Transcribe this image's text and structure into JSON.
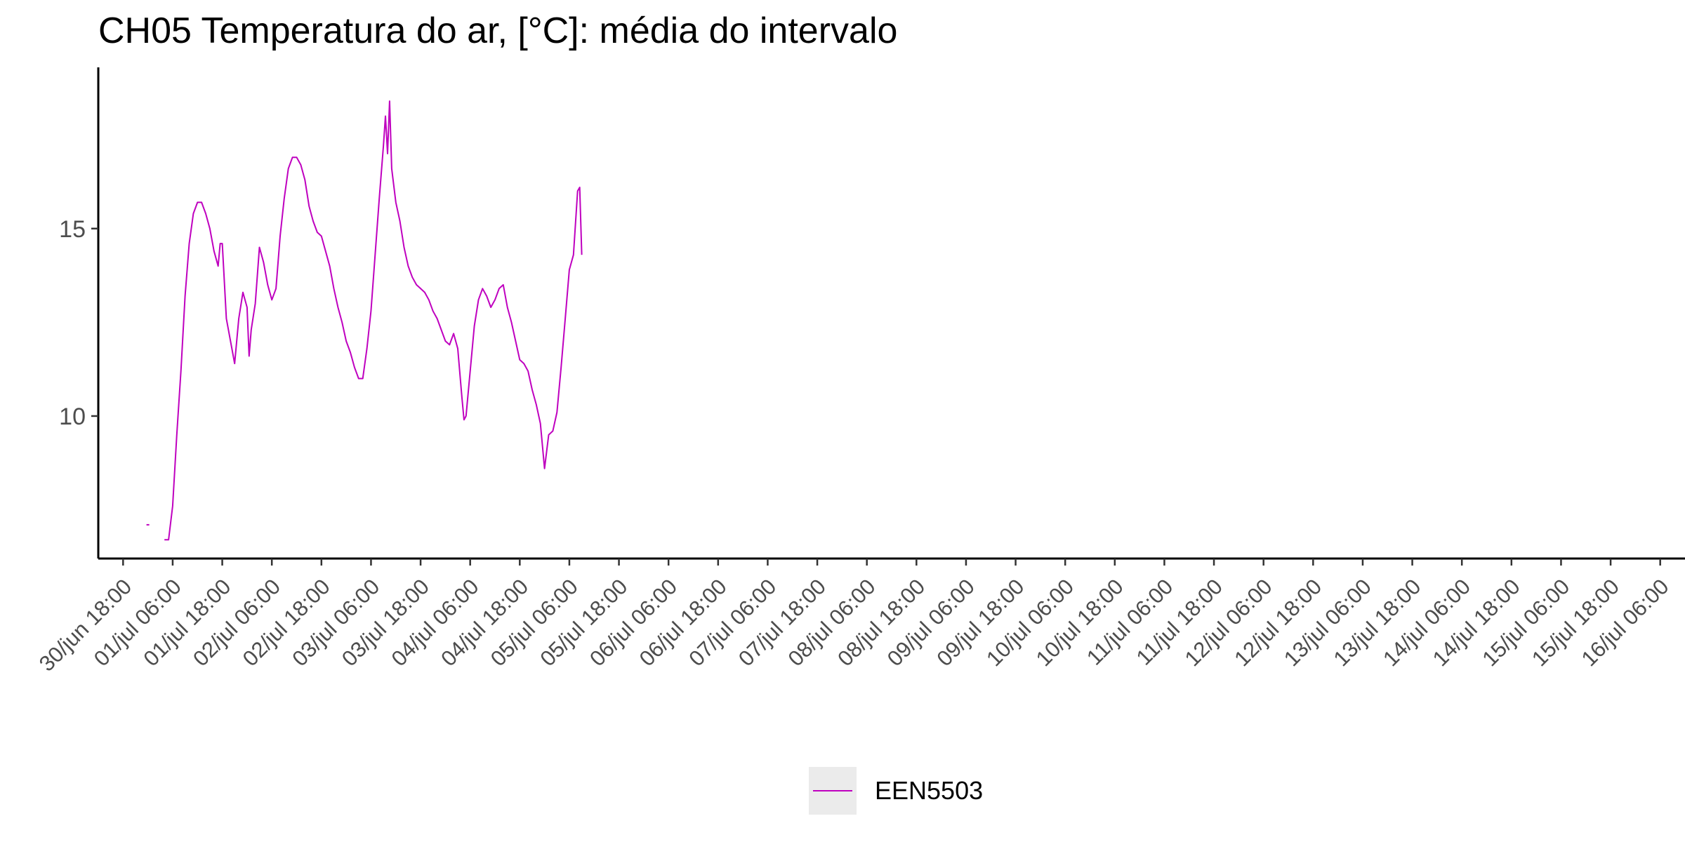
{
  "chart_data": {
    "type": "line",
    "title": "CH05 Temperatura do ar, [°C]: média do intervalo",
    "xlabel": "",
    "ylabel": "",
    "x_tick_labels": [
      "30/jun 18:00",
      "01/jul 06:00",
      "01/jul 18:00",
      "02/jul 06:00",
      "02/jul 18:00",
      "03/jul 06:00",
      "03/jul 18:00",
      "04/jul 06:00",
      "04/jul 18:00",
      "05/jul 06:00",
      "05/jul 18:00",
      "06/jul 06:00",
      "06/jul 18:00",
      "07/jul 06:00",
      "07/jul 18:00",
      "08/jul 06:00",
      "08/jul 18:00",
      "09/jul 06:00",
      "09/jul 18:00",
      "10/jul 06:00",
      "10/jul 18:00",
      "11/jul 06:00",
      "11/jul 18:00",
      "12/jul 06:00",
      "12/jul 18:00",
      "13/jul 06:00",
      "13/jul 18:00",
      "14/jul 06:00",
      "14/jul 18:00",
      "15/jul 06:00",
      "15/jul 18:00",
      "16/jul 06:00"
    ],
    "x_range": [
      "30/jun 12:00",
      "16/jul 12:00"
    ],
    "y_ticks": [
      10,
      15
    ],
    "ylim": [
      6.2,
      19.3
    ],
    "grid": false,
    "legend_position": "bottom",
    "series": [
      {
        "name": "EEN5503",
        "color": "#bf00bf",
        "points": [
          [
            "01/jul 00:00",
            7.1
          ],
          [
            "01/jul 04:00",
            6.7
          ],
          [
            "01/jul 05:00",
            6.7
          ],
          [
            "01/jul 06:00",
            7.6
          ],
          [
            "01/jul 07:00",
            9.5
          ],
          [
            "01/jul 08:00",
            11.2
          ],
          [
            "01/jul 09:00",
            13.2
          ],
          [
            "01/jul 10:00",
            14.6
          ],
          [
            "01/jul 11:00",
            15.4
          ],
          [
            "01/jul 12:00",
            15.7
          ],
          [
            "01/jul 13:00",
            15.7
          ],
          [
            "01/jul 14:00",
            15.4
          ],
          [
            "01/jul 15:00",
            15.0
          ],
          [
            "01/jul 16:00",
            14.4
          ],
          [
            "01/jul 17:00",
            14.0
          ],
          [
            "01/jul 17:30",
            14.6
          ],
          [
            "01/jul 18:00",
            14.6
          ],
          [
            "01/jul 19:00",
            12.6
          ],
          [
            "01/jul 20:00",
            12.0
          ],
          [
            "01/jul 21:00",
            11.4
          ],
          [
            "01/jul 22:00",
            12.6
          ],
          [
            "01/jul 23:00",
            13.3
          ],
          [
            "02/jul 00:00",
            12.9
          ],
          [
            "02/jul 00:30",
            11.6
          ],
          [
            "02/jul 01:00",
            12.3
          ],
          [
            "02/jul 02:00",
            13.0
          ],
          [
            "02/jul 03:00",
            14.5
          ],
          [
            "02/jul 04:00",
            14.1
          ],
          [
            "02/jul 05:00",
            13.5
          ],
          [
            "02/jul 06:00",
            13.1
          ],
          [
            "02/jul 07:00",
            13.4
          ],
          [
            "02/jul 08:00",
            14.8
          ],
          [
            "02/jul 09:00",
            15.8
          ],
          [
            "02/jul 10:00",
            16.6
          ],
          [
            "02/jul 11:00",
            16.9
          ],
          [
            "02/jul 12:00",
            16.9
          ],
          [
            "02/jul 13:00",
            16.7
          ],
          [
            "02/jul 14:00",
            16.3
          ],
          [
            "02/jul 15:00",
            15.6
          ],
          [
            "02/jul 16:00",
            15.2
          ],
          [
            "02/jul 17:00",
            14.9
          ],
          [
            "02/jul 18:00",
            14.8
          ],
          [
            "02/jul 19:00",
            14.4
          ],
          [
            "02/jul 20:00",
            14.0
          ],
          [
            "02/jul 21:00",
            13.4
          ],
          [
            "02/jul 22:00",
            12.9
          ],
          [
            "02/jul 23:00",
            12.5
          ],
          [
            "03/jul 00:00",
            12.0
          ],
          [
            "03/jul 01:00",
            11.7
          ],
          [
            "03/jul 02:00",
            11.3
          ],
          [
            "03/jul 03:00",
            11.0
          ],
          [
            "03/jul 04:00",
            11.0
          ],
          [
            "03/jul 05:00",
            11.8
          ],
          [
            "03/jul 06:00",
            12.8
          ],
          [
            "03/jul 07:00",
            14.3
          ],
          [
            "03/jul 08:00",
            15.8
          ],
          [
            "03/jul 09:00",
            17.2
          ],
          [
            "03/jul 09:30",
            18.0
          ],
          [
            "03/jul 10:00",
            17.0
          ],
          [
            "03/jul 10:30",
            18.4
          ],
          [
            "03/jul 11:00",
            16.6
          ],
          [
            "03/jul 12:00",
            15.7
          ],
          [
            "03/jul 13:00",
            15.2
          ],
          [
            "03/jul 14:00",
            14.5
          ],
          [
            "03/jul 15:00",
            14.0
          ],
          [
            "03/jul 16:00",
            13.7
          ],
          [
            "03/jul 17:00",
            13.5
          ],
          [
            "03/jul 18:00",
            13.4
          ],
          [
            "03/jul 19:00",
            13.3
          ],
          [
            "03/jul 20:00",
            13.1
          ],
          [
            "03/jul 21:00",
            12.8
          ],
          [
            "03/jul 22:00",
            12.6
          ],
          [
            "03/jul 23:00",
            12.3
          ],
          [
            "04/jul 00:00",
            12.0
          ],
          [
            "04/jul 01:00",
            11.9
          ],
          [
            "04/jul 02:00",
            12.2
          ],
          [
            "04/jul 03:00",
            11.8
          ],
          [
            "04/jul 04:00",
            10.5
          ],
          [
            "04/jul 04:30",
            9.9
          ],
          [
            "04/jul 05:00",
            10.0
          ],
          [
            "04/jul 06:00",
            11.2
          ],
          [
            "04/jul 07:00",
            12.4
          ],
          [
            "04/jul 08:00",
            13.1
          ],
          [
            "04/jul 09:00",
            13.4
          ],
          [
            "04/jul 10:00",
            13.2
          ],
          [
            "04/jul 11:00",
            12.9
          ],
          [
            "04/jul 12:00",
            13.1
          ],
          [
            "04/jul 13:00",
            13.4
          ],
          [
            "04/jul 14:00",
            13.5
          ],
          [
            "04/jul 15:00",
            12.9
          ],
          [
            "04/jul 16:00",
            12.5
          ],
          [
            "04/jul 17:00",
            12.0
          ],
          [
            "04/jul 18:00",
            11.5
          ],
          [
            "04/jul 19:00",
            11.4
          ],
          [
            "04/jul 20:00",
            11.2
          ],
          [
            "04/jul 21:00",
            10.7
          ],
          [
            "04/jul 22:00",
            10.3
          ],
          [
            "04/jul 23:00",
            9.8
          ],
          [
            "05/jul 00:00",
            8.6
          ],
          [
            "05/jul 01:00",
            9.5
          ],
          [
            "05/jul 02:00",
            9.6
          ],
          [
            "05/jul 03:00",
            10.1
          ],
          [
            "05/jul 04:00",
            11.3
          ],
          [
            "05/jul 05:00",
            12.6
          ],
          [
            "05/jul 06:00",
            13.9
          ],
          [
            "05/jul 07:00",
            14.3
          ],
          [
            "05/jul 08:00",
            16.0
          ],
          [
            "05/jul 08:30",
            16.1
          ],
          [
            "05/jul 09:00",
            14.3
          ]
        ]
      }
    ]
  }
}
